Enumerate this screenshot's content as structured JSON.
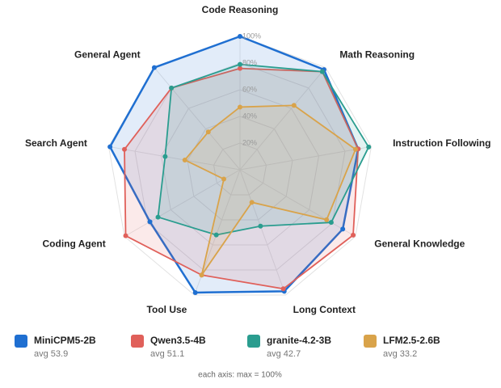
{
  "chart_data": {
    "type": "radar",
    "categories": [
      "Code Reasoning",
      "Math Reasoning",
      "Instruction Following",
      "General Knowledge",
      "Long Context",
      "Tool Use",
      "Coding Agent",
      "Search Agent",
      "General Agent"
    ],
    "rlim": [
      0,
      100
    ],
    "rticks": [
      {
        "value": 20,
        "label": "20%"
      },
      {
        "value": 40,
        "label": "40%"
      },
      {
        "value": 60,
        "label": "60%"
      },
      {
        "value": 80,
        "label": "80%"
      },
      {
        "value": 100,
        "label": "100%"
      }
    ],
    "series": [
      {
        "name": "MiniCPM5-2B",
        "avg_label": "avg 53.9",
        "color": "#1f6fd1",
        "values": [
          100,
          98,
          90,
          89,
          97,
          98,
          78,
          99,
          100
        ]
      },
      {
        "name": "Qwen3.5-4B",
        "avg_label": "avg 51.1",
        "color": "#e0605a",
        "values": [
          76,
          96,
          90,
          98,
          95,
          84,
          99,
          88,
          80
        ]
      },
      {
        "name": "granite-4.2-3B",
        "avg_label": "avg 42.7",
        "color": "#2a9d8f",
        "values": [
          79,
          96,
          98,
          79,
          45,
          52,
          71,
          57,
          80
        ]
      },
      {
        "name": "LFM2.5-2.6B",
        "avg_label": "avg 33.2",
        "color": "#d9a34a",
        "values": [
          47,
          63,
          88,
          75,
          26,
          84,
          14,
          42,
          37
        ]
      }
    ],
    "footnote": "each axis: max = 100%"
  }
}
